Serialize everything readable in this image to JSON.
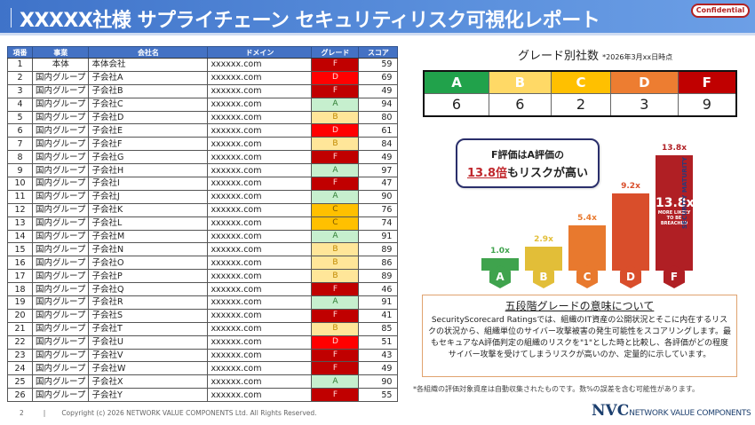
{
  "header": {
    "title": "XXXXX社様 サプライチェーン セキュリティリスク可視化レポート",
    "badge": "Confidential"
  },
  "company_table": {
    "columns": [
      "項番",
      "事業",
      "会社名",
      "ドメイン",
      "グレード",
      "スコア"
    ],
    "rows": [
      {
        "no": "1",
        "biz": "本体",
        "name": "本体会社",
        "domain": "xxxxxx.com",
        "grade": "F",
        "score": "59"
      },
      {
        "no": "2",
        "biz": "国内グループ",
        "name": "子会社A",
        "domain": "xxxxxx.com",
        "grade": "D",
        "score": "69"
      },
      {
        "no": "3",
        "biz": "国内グループ",
        "name": "子会社B",
        "domain": "xxxxxx.com",
        "grade": "F",
        "score": "49"
      },
      {
        "no": "4",
        "biz": "国内グループ",
        "name": "子会社C",
        "domain": "xxxxxx.com",
        "grade": "A",
        "score": "94"
      },
      {
        "no": "5",
        "biz": "国内グループ",
        "name": "子会社D",
        "domain": "xxxxxx.com",
        "grade": "B",
        "score": "80"
      },
      {
        "no": "6",
        "biz": "国内グループ",
        "name": "子会社E",
        "domain": "xxxxxx.com",
        "grade": "D",
        "score": "61"
      },
      {
        "no": "7",
        "biz": "国内グループ",
        "name": "子会社F",
        "domain": "xxxxxx.com",
        "grade": "B",
        "score": "84"
      },
      {
        "no": "8",
        "biz": "国内グループ",
        "name": "子会社G",
        "domain": "xxxxxx.com",
        "grade": "F",
        "score": "49"
      },
      {
        "no": "9",
        "biz": "国内グループ",
        "name": "子会社H",
        "domain": "xxxxxx.com",
        "grade": "A",
        "score": "97"
      },
      {
        "no": "10",
        "biz": "国内グループ",
        "name": "子会社I",
        "domain": "xxxxxx.com",
        "grade": "F",
        "score": "47"
      },
      {
        "no": "11",
        "biz": "国内グループ",
        "name": "子会社J",
        "domain": "xxxxxx.com",
        "grade": "A",
        "score": "90"
      },
      {
        "no": "12",
        "biz": "国内グループ",
        "name": "子会社K",
        "domain": "xxxxxx.com",
        "grade": "C",
        "score": "76"
      },
      {
        "no": "13",
        "biz": "国内グループ",
        "name": "子会社L",
        "domain": "xxxxxx.com",
        "grade": "C",
        "score": "74"
      },
      {
        "no": "14",
        "biz": "国内グループ",
        "name": "子会社M",
        "domain": "xxxxxx.com",
        "grade": "A",
        "score": "91"
      },
      {
        "no": "15",
        "biz": "国内グループ",
        "name": "子会社N",
        "domain": "xxxxxx.com",
        "grade": "B",
        "score": "89"
      },
      {
        "no": "16",
        "biz": "国内グループ",
        "name": "子会社O",
        "domain": "xxxxxx.com",
        "grade": "B",
        "score": "86"
      },
      {
        "no": "17",
        "biz": "国内グループ",
        "name": "子会社P",
        "domain": "xxxxxx.com",
        "grade": "B",
        "score": "89"
      },
      {
        "no": "18",
        "biz": "国内グループ",
        "name": "子会社Q",
        "domain": "xxxxxx.com",
        "grade": "F",
        "score": "46"
      },
      {
        "no": "19",
        "biz": "国内グループ",
        "name": "子会社R",
        "domain": "xxxxxx.com",
        "grade": "A",
        "score": "91"
      },
      {
        "no": "20",
        "biz": "国内グループ",
        "name": "子会社S",
        "domain": "xxxxxx.com",
        "grade": "F",
        "score": "41"
      },
      {
        "no": "21",
        "biz": "国内グループ",
        "name": "子会社T",
        "domain": "xxxxxx.com",
        "grade": "B",
        "score": "85"
      },
      {
        "no": "22",
        "biz": "国内グループ",
        "name": "子会社U",
        "domain": "xxxxxx.com",
        "grade": "D",
        "score": "51"
      },
      {
        "no": "23",
        "biz": "国内グループ",
        "name": "子会社V",
        "domain": "xxxxxx.com",
        "grade": "F",
        "score": "43"
      },
      {
        "no": "24",
        "biz": "国内グループ",
        "name": "子会社W",
        "domain": "xxxxxx.com",
        "grade": "F",
        "score": "49"
      },
      {
        "no": "25",
        "biz": "国内グループ",
        "name": "子会社X",
        "domain": "xxxxxx.com",
        "grade": "A",
        "score": "90"
      },
      {
        "no": "26",
        "biz": "国内グループ",
        "name": "子会社Y",
        "domain": "xxxxxx.com",
        "grade": "F",
        "score": "55"
      }
    ]
  },
  "grade_counts": {
    "title": "グレード別社数",
    "note": "*2026年3月xx日時点",
    "grades": [
      {
        "label": "A",
        "count": "6",
        "color": "#21a24b"
      },
      {
        "label": "B",
        "count": "6",
        "color": "#ffd966"
      },
      {
        "label": "C",
        "count": "2",
        "color": "#ffc000"
      },
      {
        "label": "D",
        "count": "3",
        "color": "#ed7d31"
      },
      {
        "label": "F",
        "count": "9",
        "color": "#c00000"
      }
    ]
  },
  "callout": {
    "line1": "F評価はA評価の",
    "highlight": "13.8倍",
    "line2_rest": "もリスクが高い"
  },
  "risk_chart": {
    "side_label": "SECURITY MATURITY",
    "in_bar_value": "13.8x",
    "in_bar_text_1": "MORE LIKELY",
    "in_bar_text_2": "TO BE",
    "in_bar_text_3": "BREACHED"
  },
  "chart_data": {
    "type": "bar",
    "title": "",
    "categories": [
      "A",
      "B",
      "C",
      "D",
      "F"
    ],
    "values": [
      1.0,
      2.9,
      5.4,
      9.2,
      13.8
    ],
    "value_labels": [
      "1.0x",
      "2.9x",
      "5.4x",
      "9.2x",
      "13.8x"
    ],
    "colors": [
      "#3fa34d",
      "#e2be38",
      "#e8792e",
      "#d94e2b",
      "#b01f24"
    ],
    "xlabel": "",
    "ylabel": "SECURITY MATURITY",
    "annotation": "13.8x MORE LIKELY TO BE BREACHED"
  },
  "explanation": {
    "title": "五段階グレードの意味について",
    "body": "SecurityScorecard Ratingsでは、組織のIT資産の公開状況とそこに内在するリスクの状況から、組織単位のサイバー攻撃被害の発生可能性をスコアリングします。最もセキュアなA評価判定の組織のリスクを\"1\"とした時と比較し、各評価がどの程度サイバー攻撃を受けてしまうリスクが高いのか、定量的に示しています。",
    "footnote": "*各組織の評価対象資産は自動収集されたものです。数%の誤差を含む可能性があります。"
  },
  "footer": {
    "page": "2",
    "separator": "|",
    "copyright": "Copyright (c) 2026 NETWORK VALUE COMPONENTS Ltd. All Rights Reserved.",
    "logo_big": "NVC",
    "logo_small": "NETWORK VALUE COMPONENTS"
  }
}
